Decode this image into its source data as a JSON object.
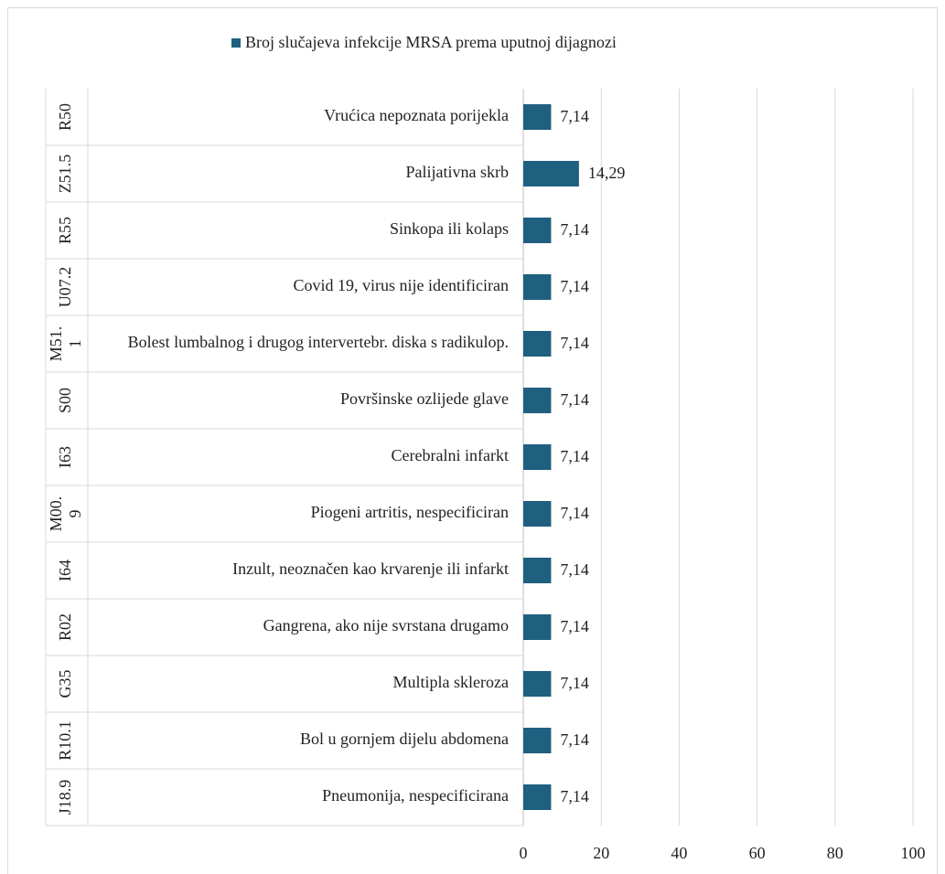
{
  "chart_data": {
    "type": "bar",
    "orientation": "horizontal",
    "legend": "top",
    "series": [
      {
        "name": "Broj slučajeva infekcije MRSA prema uputnoj dijagnozi",
        "color": "#1f5f80",
        "values": [
          7.14,
          14.29,
          7.14,
          7.14,
          7.14,
          7.14,
          7.14,
          7.14,
          7.14,
          7.14,
          7.14,
          7.14,
          7.14
        ],
        "value_labels": [
          "7,14",
          "14,29",
          "7,14",
          "7,14",
          "7,14",
          "7,14",
          "7,14",
          "7,14",
          "7,14",
          "7,14",
          "7,14",
          "7,14",
          "7,14"
        ]
      }
    ],
    "categories": [
      "Vrućica nepoznata porijekla",
      "Palijativna skrb",
      "Sinkopa ili kolaps",
      "Covid 19, virus nije identificiran",
      "Bolest lumbalnog i drugog intervertebr. diska s radikulop.",
      "Površinske ozlijede glave",
      "Cerebralni infarkt",
      "Piogeni artritis, nespecificiran",
      "Inzult, neoznačen kao krvarenje ili infarkt",
      "Gangrena, ako nije svrstana drugamo",
      "Multipla skleroza",
      "Bol u gornjem dijelu abdomena",
      "Pneumonija, nespecificirana"
    ],
    "codes": [
      "R50",
      "Z51.5",
      "R55",
      "U07.2",
      "M51.1",
      "S00",
      "I63",
      "M00.9",
      "I64",
      "R02",
      "G35",
      "R10.1",
      "J18.9"
    ],
    "xlim": [
      0,
      100
    ],
    "xticks": [
      0,
      20,
      40,
      60,
      80,
      100
    ],
    "grid": true
  }
}
